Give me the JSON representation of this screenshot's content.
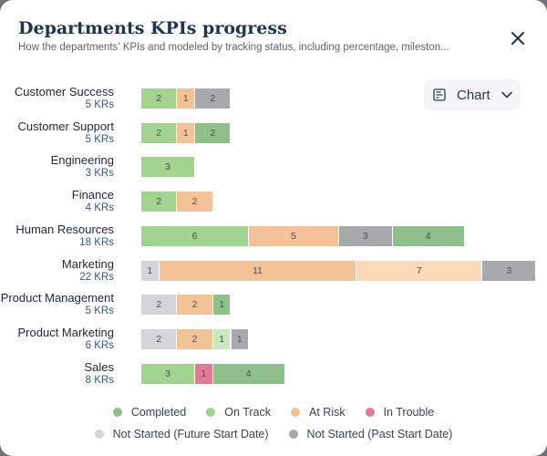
{
  "header": {
    "title": "Departments KPIs progress",
    "subtitle": "How the departments' KPIs and modeled by tracking status, including percentage, mileston..."
  },
  "chart_toggle": {
    "label": "Chart"
  },
  "colors": {
    "completed": "#8fc08b",
    "on_track": "#a3d48f",
    "at_risk": "#f3c296",
    "in_trouble": "#e07a95",
    "not_started_future": "#d3d5d8",
    "not_started_past": "#a8a9ab"
  },
  "chart_data": {
    "type": "bar",
    "orientation": "horizontal",
    "stacked": true,
    "unit_label": "KRs",
    "categories": [
      "Customer Success",
      "Customer Support",
      "Engineering",
      "Finance",
      "Human Resources",
      "Marketing",
      "Product Management",
      "Product Marketing",
      "Sales"
    ],
    "kr_counts": [
      "5 KRs",
      "5 KRs",
      "3 KRs",
      "4 KRs",
      "18 KRs",
      "22 KRs",
      "5 KRs",
      "6 KRs",
      "8 KRs"
    ],
    "rows": [
      [
        {
          "status": "on_track",
          "value": 2
        },
        {
          "status": "at_risk",
          "value": 1
        },
        {
          "status": "not_started_past",
          "value": 2
        }
      ],
      [
        {
          "status": "on_track",
          "value": 2
        },
        {
          "status": "at_risk",
          "value": 1
        },
        {
          "status": "completed",
          "value": 2
        }
      ],
      [
        {
          "status": "on_track",
          "value": 3
        }
      ],
      [
        {
          "status": "on_track",
          "value": 2
        },
        {
          "status": "at_risk",
          "value": 2
        }
      ],
      [
        {
          "status": "on_track",
          "value": 6
        },
        {
          "status": "at_risk",
          "value": 5
        },
        {
          "status": "not_started_past",
          "value": 3
        },
        {
          "status": "completed",
          "value": 4
        }
      ],
      [
        {
          "status": "not_started_future",
          "value": 1
        },
        {
          "status": "at_risk",
          "value": 11
        },
        {
          "status": "at_risk_light",
          "value": 7
        },
        {
          "status": "not_started_past",
          "value": 3
        }
      ],
      [
        {
          "status": "not_started_future",
          "value": 2
        },
        {
          "status": "at_risk",
          "value": 2
        },
        {
          "status": "completed",
          "value": 1
        }
      ],
      [
        {
          "status": "not_started_future",
          "value": 2
        },
        {
          "status": "at_risk",
          "value": 2
        },
        {
          "status": "on_track_light",
          "value": 1
        },
        {
          "status": "not_started_past",
          "value": 1
        }
      ],
      [
        {
          "status": "on_track",
          "value": 3
        },
        {
          "status": "in_trouble",
          "value": 1
        },
        {
          "status": "completed",
          "value": 4
        }
      ]
    ],
    "legend": [
      {
        "key": "completed",
        "label": "Completed",
        "color": "#8fc08b"
      },
      {
        "key": "on_track",
        "label": "On Track",
        "color": "#a3d48f"
      },
      {
        "key": "at_risk",
        "label": "At Risk",
        "color": "#f3c296"
      },
      {
        "key": "in_trouble",
        "label": "In Trouble",
        "color": "#e07a95"
      },
      {
        "key": "not_started_future",
        "label": "Not Started (Future Start Date)",
        "color": "#d3d5d8"
      },
      {
        "key": "not_started_past",
        "label": "Not Started (Past Start Date)",
        "color": "#a8a9ab"
      }
    ],
    "legend_position": "bottom",
    "grid": false
  }
}
